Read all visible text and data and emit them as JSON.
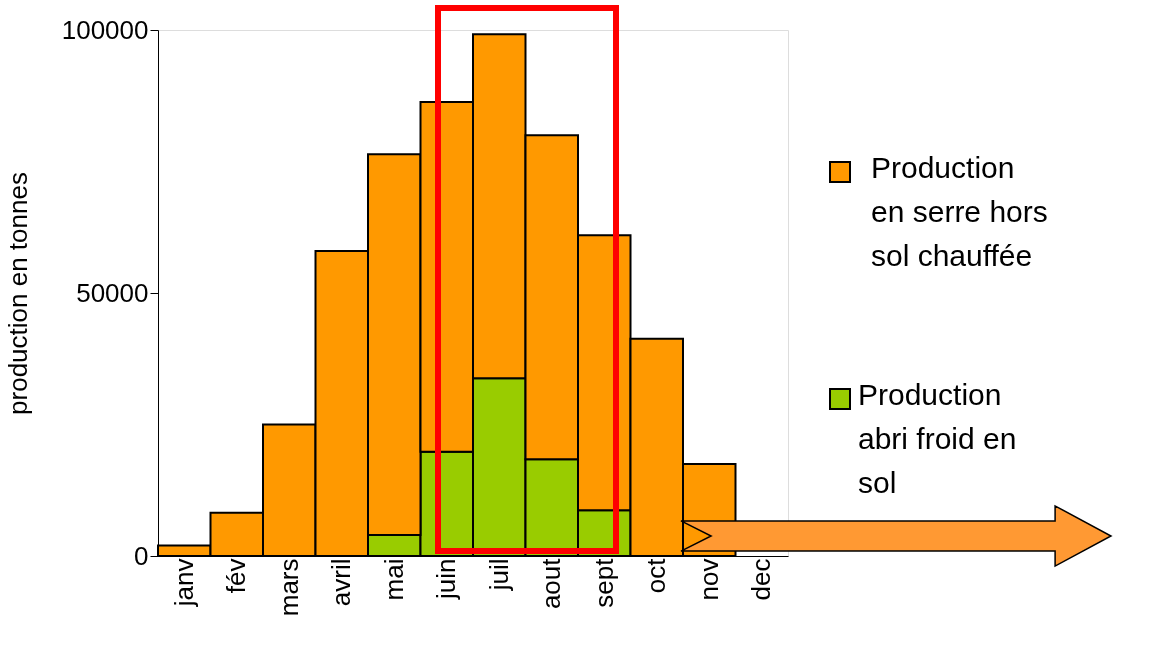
{
  "chart_data": {
    "type": "bar",
    "stacked": true,
    "ylabel": "production en tonnes",
    "categories": [
      "janv",
      "fév",
      "mars",
      "avril",
      "mai",
      "juin",
      "juil",
      "aout",
      "sept",
      "oct",
      "nov",
      "dec"
    ],
    "series": [
      {
        "name": "Production abri froid en sol",
        "color": "#99cc00",
        "values": [
          null,
          null,
          null,
          null,
          4000,
          19800,
          33800,
          18400,
          8700,
          null,
          null,
          null
        ]
      },
      {
        "name": "Production en serre hors sol chauffée",
        "color": "#ff9900",
        "values": [
          2000,
          8200,
          25000,
          58000,
          72400,
          66500,
          65400,
          61600,
          52300,
          41300,
          17500,
          null
        ]
      }
    ],
    "ylim": [
      0,
      100000
    ],
    "yticks": [
      0,
      50000,
      100000
    ],
    "grid": false,
    "legend": "right"
  }
}
